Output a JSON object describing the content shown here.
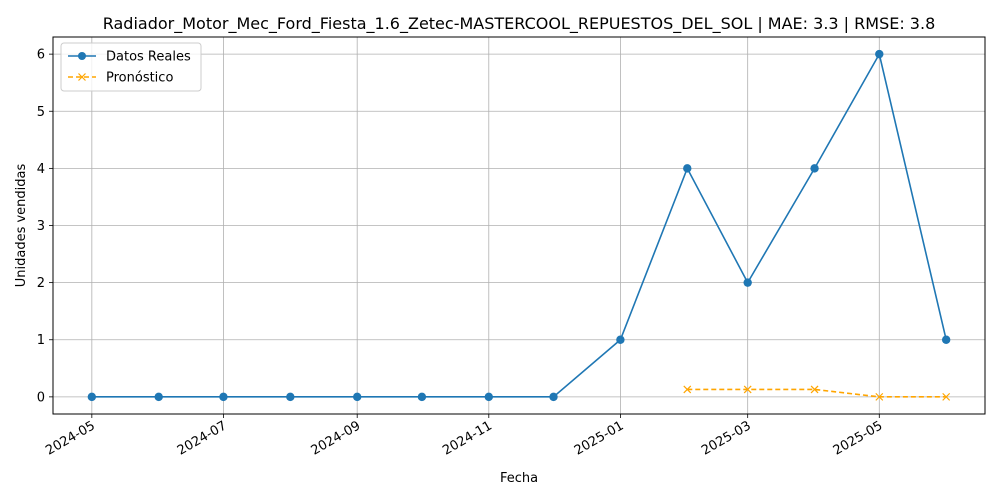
{
  "chart_data": {
    "type": "line",
    "title": "Radiador_Motor_Mec_Ford_Fiesta_1.6_Zetec-MASTERCOOL_REPUESTOS_DEL_SOL | MAE: 3.3 | RMSE: 3.8",
    "xlabel": "Fecha",
    "ylabel": "Unidades vendidas",
    "x_ticks": [
      "2024-05",
      "2024-07",
      "2024-09",
      "2024-11",
      "2025-01",
      "2025-03",
      "2025-05"
    ],
    "y_ticks": [
      0,
      1,
      2,
      3,
      4,
      5,
      6
    ],
    "ylim": [
      -0.3,
      6.3
    ],
    "xlim": [
      "2024-04-13",
      "2025-06-19"
    ],
    "grid": true,
    "legend_position": "top-left",
    "series": [
      {
        "name": "Datos Reales",
        "color": "#1f77b4",
        "style": "solid",
        "marker": "circle",
        "x": [
          "2024-05-01",
          "2024-06-01",
          "2024-07-01",
          "2024-08-01",
          "2024-09-01",
          "2024-10-01",
          "2024-11-01",
          "2024-12-01",
          "2025-01-01",
          "2025-02-01",
          "2025-03-01",
          "2025-04-01",
          "2025-05-01",
          "2025-06-01"
        ],
        "y": [
          0,
          0,
          0,
          0,
          0,
          0,
          0,
          0,
          1,
          4,
          2,
          4,
          6,
          1
        ]
      },
      {
        "name": "Pronóstico",
        "color": "#ffa500",
        "style": "dashed",
        "marker": "x",
        "x": [
          "2025-02-01",
          "2025-03-01",
          "2025-04-01",
          "2025-05-01",
          "2025-06-01"
        ],
        "y": [
          0.13,
          0.13,
          0.13,
          0,
          0
        ]
      }
    ]
  }
}
